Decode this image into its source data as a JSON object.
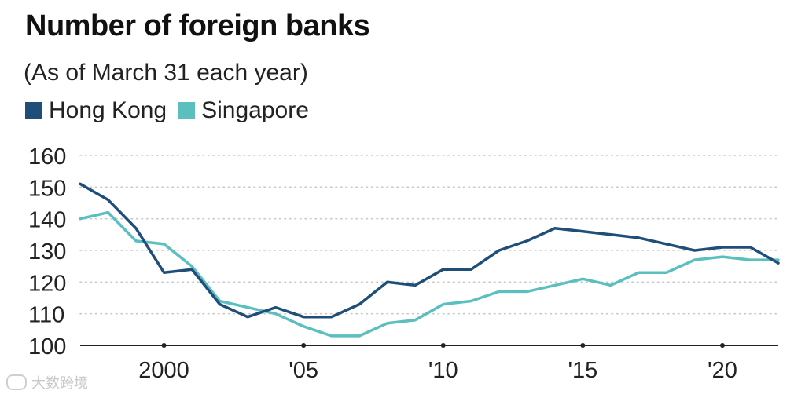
{
  "header": {
    "title": "Number of foreign banks",
    "subtitle": "(As of March 31 each year)"
  },
  "legend": [
    {
      "label": "Hong Kong",
      "color": "#1f4e79"
    },
    {
      "label": "Singapore",
      "color": "#5bbfc0"
    }
  ],
  "watermark": "大数跨境",
  "chart_data": {
    "type": "line",
    "title": "Number of foreign banks",
    "subtitle": "(As of March 31 each year)",
    "xlabel": "",
    "ylabel": "",
    "x": [
      1997,
      1998,
      1999,
      2000,
      2001,
      2002,
      2003,
      2004,
      2005,
      2006,
      2007,
      2008,
      2009,
      2010,
      2011,
      2012,
      2013,
      2014,
      2015,
      2016,
      2017,
      2018,
      2019,
      2020,
      2021,
      2022
    ],
    "xlim": [
      1997,
      2022
    ],
    "ylim": [
      100,
      160
    ],
    "yticks": [
      100,
      110,
      120,
      130,
      140,
      150,
      160
    ],
    "xticks": [
      {
        "value": 2000,
        "label": "2000"
      },
      {
        "value": 2005,
        "label": "'05"
      },
      {
        "value": 2010,
        "label": "'10"
      },
      {
        "value": 2015,
        "label": "'15"
      },
      {
        "value": 2020,
        "label": "'20"
      }
    ],
    "grid": "horizontal dotted",
    "legend_position": "top-left",
    "series": [
      {
        "name": "Hong Kong",
        "color": "#1f4e79",
        "values": [
          151,
          146,
          137,
          123,
          124,
          113,
          109,
          112,
          109,
          109,
          113,
          120,
          119,
          124,
          124,
          130,
          133,
          137,
          136,
          135,
          134,
          132,
          130,
          131,
          131,
          126
        ]
      },
      {
        "name": "Singapore",
        "color": "#5bbfc0",
        "values": [
          140,
          142,
          133,
          132,
          125,
          114,
          112,
          110,
          106,
          103,
          103,
          107,
          108,
          113,
          114,
          117,
          117,
          119,
          121,
          119,
          123,
          123,
          127,
          128,
          127,
          127
        ]
      }
    ]
  }
}
